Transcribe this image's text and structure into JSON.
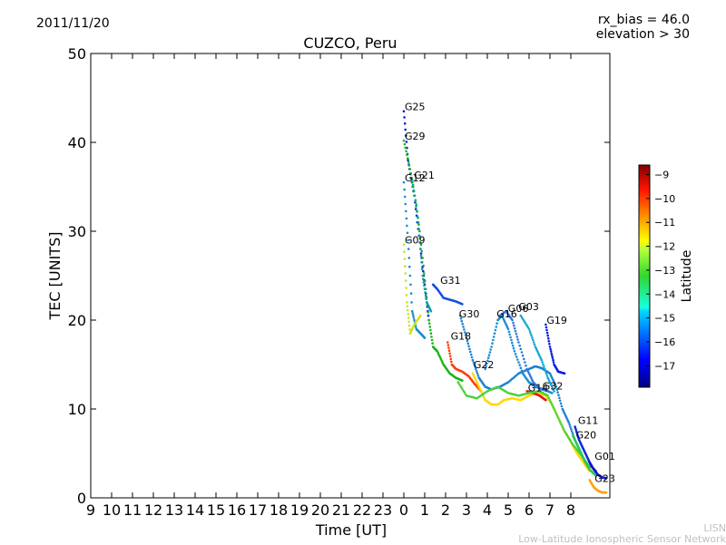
{
  "header": {
    "date": "2011/11/20",
    "rx_bias": "rx_bias = 46.0",
    "elevation": "elevation > 30"
  },
  "footer": {
    "credit_short": "LISN",
    "credit_long": "Low-Latitude Ionospheric Sensor Network"
  },
  "chart_data": {
    "type": "scatter",
    "title": "CUZCO, Peru",
    "xlabel": "Time [UT]",
    "ylabel": "TEC [UNITS]",
    "x_tick_labels": [
      "9",
      "10",
      "11",
      "12",
      "13",
      "14",
      "15",
      "16",
      "17",
      "18",
      "19",
      "20",
      "21",
      "22",
      "23",
      "0",
      "1",
      "2",
      "3",
      "4",
      "5",
      "6",
      "7",
      "8"
    ],
    "ylim": [
      0,
      50
    ],
    "y_ticks": [
      0,
      10,
      20,
      30,
      40,
      50
    ],
    "colorbar": {
      "label": "Latitude",
      "range": [
        -17.9,
        -8.6
      ],
      "ticks": [
        -9,
        -10,
        -11,
        -12,
        -13,
        -14,
        -15,
        -16,
        -17
      ]
    },
    "series": [
      {
        "name": "G25",
        "color": "#0a1ee0",
        "points": [
          [
            0.0,
            43.5
          ],
          [
            0.2,
            38
          ],
          [
            0.5,
            34
          ],
          [
            0.8,
            28
          ],
          [
            1.0,
            24
          ],
          [
            1.2,
            20
          ]
        ]
      },
      {
        "name": "G29",
        "color": "#19b419",
        "points": [
          [
            0.0,
            40.2
          ],
          [
            0.3,
            37
          ],
          [
            0.6,
            33
          ],
          [
            0.9,
            27
          ],
          [
            1.2,
            20
          ],
          [
            1.4,
            17
          ],
          [
            1.6,
            16.5
          ],
          [
            1.9,
            15
          ],
          [
            2.2,
            14
          ],
          [
            2.5,
            13.5
          ],
          [
            2.8,
            13.2
          ]
        ]
      },
      {
        "name": "G12",
        "color": "#1e8cd2",
        "points": [
          [
            0.0,
            35.5
          ],
          [
            0.2,
            29
          ],
          [
            0.4,
            21
          ],
          [
            0.6,
            19
          ],
          [
            0.8,
            18.5
          ],
          [
            1.0,
            18
          ]
        ]
      },
      {
        "name": "G21",
        "color": "#0ca0a0",
        "points": [
          [
            0.4,
            35.8
          ],
          [
            0.7,
            31
          ],
          [
            0.9,
            25
          ],
          [
            1.1,
            22
          ],
          [
            1.3,
            21
          ]
        ]
      },
      {
        "name": "G09",
        "color": "#c8e61e",
        "points": [
          [
            0.0,
            28.5
          ],
          [
            0.15,
            22
          ],
          [
            0.3,
            18.5
          ],
          [
            0.5,
            19.5
          ],
          [
            0.8,
            20.5
          ]
        ]
      },
      {
        "name": "G31",
        "color": "#1450e6",
        "points": [
          [
            1.4,
            24
          ],
          [
            1.6,
            23.5
          ],
          [
            1.9,
            22.5
          ],
          [
            2.2,
            22.3
          ],
          [
            2.5,
            22.1
          ],
          [
            2.8,
            21.8
          ]
        ]
      },
      {
        "name": "G30",
        "color": "#1e82d2",
        "points": [
          [
            2.7,
            20.5
          ],
          [
            3.0,
            18
          ],
          [
            3.3,
            15.5
          ],
          [
            3.6,
            13.5
          ],
          [
            3.9,
            12.5
          ],
          [
            4.2,
            12.2
          ],
          [
            4.6,
            12.5
          ],
          [
            5.0,
            13
          ],
          [
            5.5,
            14
          ],
          [
            6.0,
            14.5
          ],
          [
            6.3,
            14.8
          ],
          [
            6.6,
            14.6
          ],
          [
            7.0,
            14
          ],
          [
            7.3,
            12.5
          ],
          [
            7.6,
            10
          ],
          [
            7.9,
            8.5
          ],
          [
            8.2,
            6.5
          ],
          [
            8.5,
            5
          ],
          [
            8.8,
            3.5
          ]
        ]
      },
      {
        "name": "G18",
        "color": "#ff3c0a",
        "points": [
          [
            2.1,
            17.5
          ],
          [
            2.3,
            15
          ],
          [
            2.5,
            14.5
          ],
          [
            2.8,
            14.2
          ],
          [
            3.1,
            13.7
          ],
          [
            3.4,
            12.8
          ],
          [
            3.7,
            12
          ]
        ]
      },
      {
        "name": "G16",
        "color": "#1e8cd2",
        "points": [
          [
            3.9,
            14.5
          ],
          [
            4.2,
            17
          ],
          [
            4.5,
            20
          ],
          [
            4.7,
            20.5
          ],
          [
            5.0,
            19
          ],
          [
            5.3,
            16.5
          ],
          [
            5.7,
            14
          ],
          [
            6.0,
            13
          ],
          [
            6.3,
            12.5
          ],
          [
            6.7,
            12.2
          ],
          [
            7.1,
            11.8
          ]
        ]
      },
      {
        "name": "G06",
        "color": "#3278dc",
        "points": [
          [
            4.6,
            20.5
          ],
          [
            4.9,
            21
          ],
          [
            5.2,
            20
          ],
          [
            5.5,
            17.5
          ],
          [
            5.9,
            14.5
          ],
          [
            6.2,
            13
          ],
          [
            6.5,
            12.3
          ],
          [
            6.9,
            12
          ]
        ]
      },
      {
        "name": "G03",
        "color": "#14aad2",
        "points": [
          [
            5.6,
            20.5
          ],
          [
            6.0,
            19
          ],
          [
            6.3,
            17
          ],
          [
            6.6,
            15.5
          ],
          [
            6.9,
            13.5
          ],
          [
            7.2,
            12
          ]
        ]
      },
      {
        "name": "G19",
        "color": "#0a1ee0",
        "points": [
          [
            6.8,
            19.5
          ],
          [
            7.0,
            17
          ],
          [
            7.2,
            15
          ],
          [
            7.4,
            14.2
          ],
          [
            7.7,
            14
          ]
        ]
      },
      {
        "name": "G22",
        "color": "#ffd700",
        "points": [
          [
            3.3,
            14
          ],
          [
            3.6,
            12.5
          ],
          [
            3.9,
            11
          ],
          [
            4.2,
            10.5
          ],
          [
            4.5,
            10.5
          ],
          [
            4.8,
            11
          ],
          [
            5.2,
            11.2
          ],
          [
            5.6,
            11
          ],
          [
            6.0,
            11.5
          ],
          [
            6.4,
            11.8
          ],
          [
            6.8,
            11.5
          ],
          [
            7.1,
            10.5
          ],
          [
            7.4,
            9
          ],
          [
            7.7,
            7.5
          ],
          [
            8.0,
            6.3
          ],
          [
            8.3,
            5
          ],
          [
            8.6,
            4
          ],
          [
            8.9,
            3
          ]
        ]
      },
      {
        "name": "G14",
        "color": "#e61414",
        "points": [
          [
            5.9,
            12
          ],
          [
            6.2,
            11.8
          ],
          [
            6.5,
            11.5
          ],
          [
            6.8,
            11
          ]
        ]
      },
      {
        "name": "G32",
        "color": "#4bd23c",
        "points": [
          [
            2.6,
            13
          ],
          [
            3.0,
            11.5
          ],
          [
            3.5,
            11.2
          ],
          [
            4.0,
            12
          ],
          [
            4.5,
            12.5
          ],
          [
            5.0,
            11.8
          ],
          [
            5.5,
            11.5
          ],
          [
            6.0,
            11.8
          ],
          [
            6.5,
            12
          ],
          [
            6.9,
            11.5
          ],
          [
            7.3,
            9.5
          ],
          [
            7.7,
            7.5
          ],
          [
            8.1,
            6
          ],
          [
            8.5,
            4.8
          ],
          [
            8.9,
            3.5
          ]
        ]
      },
      {
        "name": "G11",
        "color": "#1428dc",
        "points": [
          [
            8.2,
            8
          ],
          [
            8.4,
            6.5
          ],
          [
            8.6,
            5.5
          ],
          [
            8.8,
            4.5
          ],
          [
            9.0,
            3.5
          ],
          [
            9.2,
            3
          ]
        ]
      },
      {
        "name": "G20",
        "color": "#28c850",
        "points": [
          [
            8.1,
            7
          ],
          [
            8.3,
            6
          ],
          [
            8.5,
            5
          ],
          [
            8.7,
            4
          ],
          [
            8.9,
            3.2
          ],
          [
            9.2,
            2.5
          ]
        ]
      },
      {
        "name": "G01",
        "color": "#1414c8",
        "points": [
          [
            8.9,
            4
          ],
          [
            9.1,
            3.2
          ],
          [
            9.3,
            2.6
          ],
          [
            9.5,
            2.3
          ],
          [
            9.7,
            2.2
          ]
        ]
      },
      {
        "name": "G23",
        "color": "#ffa014",
        "points": [
          [
            8.9,
            2
          ],
          [
            9.1,
            1.2
          ],
          [
            9.3,
            0.8
          ],
          [
            9.5,
            0.6
          ],
          [
            9.7,
            0.6
          ]
        ]
      }
    ],
    "label_positions": {
      "G25": [
        0.0,
        43.5
      ],
      "G29": [
        0.0,
        40.2
      ],
      "G12": [
        0.0,
        35.5
      ],
      "G21": [
        0.45,
        35.8
      ],
      "G09": [
        0.0,
        28.5
      ],
      "G31": [
        1.7,
        24.0
      ],
      "G30": [
        2.6,
        20.2
      ],
      "G18": [
        2.2,
        17.7
      ],
      "G16": [
        4.4,
        20.2
      ],
      "G06": [
        4.95,
        20.8
      ],
      "G03": [
        5.45,
        21.0
      ],
      "G19": [
        6.8,
        19.5
      ],
      "G22": [
        3.3,
        14.5
      ],
      "G14": [
        5.9,
        11.9
      ],
      "G32": [
        6.6,
        12.1
      ],
      "G11": [
        8.3,
        8.2
      ],
      "G20": [
        8.2,
        6.6
      ],
      "G01": [
        9.1,
        4.2
      ],
      "G23": [
        9.1,
        1.7
      ]
    }
  }
}
